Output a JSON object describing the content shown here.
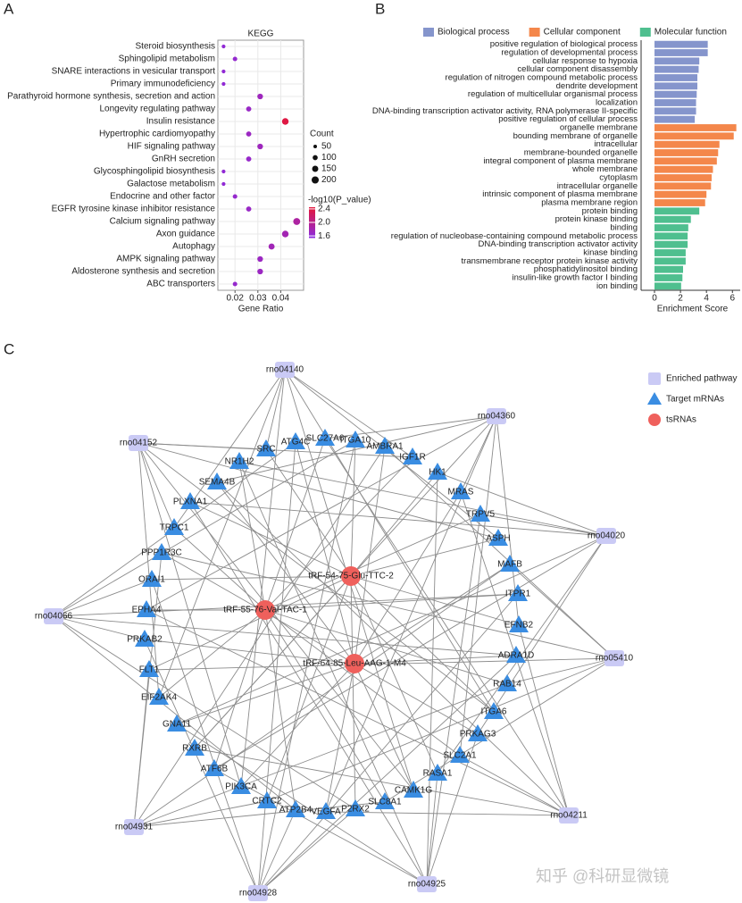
{
  "chart_data": [
    {
      "panel": "A",
      "type": "scatter",
      "title": "KEGG",
      "xlabel": "Gene Ratio",
      "categories": [
        "Steroid biosynthesis",
        "Sphingolipid metabolism",
        "SNARE interactions in vesicular transport",
        "Primary immunodeficiency",
        "Parathyroid hormone synthesis, secretion and action",
        "Longevity regulating pathway",
        "Insulin resistance",
        "Hypertrophic cardiomyopathy",
        "HIF signaling pathway",
        "GnRH secretion",
        "Glycosphingolipid biosynthesis",
        "Galactose metabolism",
        "Endocrine and other factor",
        "EGFR tyrosine kinase inhibitor resistance",
        "Calcium signaling pathway",
        "Axon guidance",
        "Autophagy",
        "AMPK signaling pathway",
        "Aldosterone synthesis and secretion",
        "ABC transporters"
      ],
      "label_colors": [
        "#222222",
        "#222222",
        "#222222",
        "#222222",
        "#d7191c",
        "#d7191c",
        "#d7191c",
        "#d7191c",
        "#d7191c",
        "#222222",
        "#222222",
        "#222222",
        "#222222",
        "#222222",
        "#d7191c",
        "#d7191c",
        "#d7191c",
        "#d7191c",
        "#d7191c",
        "#222222"
      ],
      "values": [
        0.015,
        0.02,
        0.015,
        0.015,
        0.031,
        0.026,
        0.042,
        0.026,
        0.031,
        0.026,
        0.015,
        0.015,
        0.02,
        0.026,
        0.047,
        0.042,
        0.036,
        0.031,
        0.031,
        0.02
      ],
      "size": [
        55,
        80,
        55,
        55,
        125,
        105,
        170,
        105,
        125,
        105,
        55,
        55,
        80,
        105,
        190,
        170,
        145,
        125,
        125,
        80
      ],
      "color_values": [
        1.62,
        1.65,
        1.62,
        1.62,
        1.75,
        1.7,
        2.4,
        1.72,
        1.75,
        1.68,
        1.62,
        1.62,
        1.66,
        1.7,
        1.9,
        1.8,
        1.78,
        1.72,
        1.72,
        1.66
      ],
      "xlim": [
        0.0125,
        0.05
      ],
      "xticks": [
        0.02,
        0.03,
        0.04
      ],
      "grid": true,
      "size_title": "Count",
      "size_ticks": [
        50,
        100,
        150,
        200
      ],
      "color_title": "-log10(P_value)",
      "clim": [
        1.55,
        2.45
      ],
      "cticks": [
        2.4,
        {
          "value": 2,
          "label": "2.0"
        },
        1.6
      ],
      "colormap": [
        "#8a2be2",
        "#e4173a"
      ]
    },
    {
      "panel": "B",
      "type": "bar",
      "orientation": "horizontal",
      "xlabel": "Enrichment Score",
      "xlim": [
        0,
        6.6
      ],
      "xticks": [
        0,
        2,
        4,
        6
      ],
      "series": [
        {
          "name": "Biological process",
          "color": "#8595cc",
          "categories": [
            "positive regulation of biological process",
            "regulation of developmental process",
            "cellular response to hypoxia",
            "cellular component disassembly",
            "regulation of nitrogen compound metabolic process",
            "dendrite development",
            "regulation of multicellular organismal process",
            "localization",
            "DNA-binding transcription activator activity, RNA polymerase II-specific",
            "positive regulation of cellular process"
          ],
          "values": [
            4.1,
            4.1,
            3.45,
            3.4,
            3.3,
            3.3,
            3.25,
            3.2,
            3.2,
            3.1
          ]
        },
        {
          "name": "Cellular component",
          "color": "#f4874b",
          "categories": [
            "organelle membrane",
            "bounding membrane of organelle",
            "intracellular",
            "membrane-bounded organelle",
            "integral component of plasma membrane",
            "whole membrane",
            "cytoplasm",
            "intracellular organelle",
            "intrinsic component of plasma membrane",
            "plasma membrane region"
          ],
          "values": [
            6.3,
            6.1,
            5.0,
            4.9,
            4.8,
            4.5,
            4.4,
            4.35,
            4.0,
            3.9
          ]
        },
        {
          "name": "Molecular function",
          "color": "#4fbf8f",
          "categories": [
            "protein binding",
            "protein kinase binding",
            "binding",
            "regulation of nucleobase-containing compound metabolic process",
            "DNA-binding transcription activator activity",
            "kinase binding",
            "transmembrane receptor protein kinase activity",
            "phosphatidylinositol binding",
            "insulin-like growth factor I binding",
            "ion binding"
          ],
          "values": [
            3.45,
            2.8,
            2.6,
            2.55,
            2.55,
            2.4,
            2.4,
            2.2,
            2.15,
            2.05
          ]
        }
      ]
    }
  ],
  "network": {
    "panel": "C",
    "legend": [
      "Enriched pathway",
      "Target mRNAs",
      "tsRNAs"
    ],
    "colors": {
      "pathway": "#cacaf5",
      "mrna": "#3a8de2",
      "tsrna": "#ef605c",
      "edge": "#8c8c8c"
    },
    "pathways": [
      "rno04140",
      "rno04360",
      "rno04152",
      "rno04020",
      "rno04066",
      "rno05410",
      "rno04211",
      "rno04931",
      "rno04928",
      "rno04925"
    ],
    "tsrnas": [
      "tRF-54-75-Glu-TTC-2",
      "tRF-55-76-Val-TAC-1",
      "tRF-64-85-Leu-AAG-1-M4"
    ],
    "mrnas": [
      {
        "label": "SRC",
        "tsrna": 0,
        "pathways": [
          0,
          2
        ]
      },
      {
        "label": "NR1H2",
        "tsrna": 1,
        "pathways": [
          3,
          9
        ]
      },
      {
        "label": "SEMA4B",
        "tsrna": 2,
        "pathways": [
          6,
          1
        ]
      },
      {
        "label": "PLXNA1",
        "tsrna": 0,
        "pathways": [
          9,
          3
        ]
      },
      {
        "label": "TRPC1",
        "tsrna": 1,
        "pathways": [
          2,
          0
        ]
      },
      {
        "label": "PPP1R3C",
        "tsrna": 2,
        "pathways": [
          5,
          7
        ]
      },
      {
        "label": "ORAI1",
        "tsrna": 0,
        "pathways": [
          8,
          4
        ]
      },
      {
        "label": "EPHA4",
        "tsrna": 1,
        "pathways": [
          1,
          6
        ]
      },
      {
        "label": "PRKAB2",
        "tsrna": 2,
        "pathways": [
          4,
          8
        ]
      },
      {
        "label": "FLT1",
        "tsrna": 0,
        "pathways": [
          7,
          5
        ]
      },
      {
        "label": "EIF2AK4",
        "tsrna": 1,
        "pathways": [
          0,
          2
        ]
      },
      {
        "label": "GNA11",
        "tsrna": 2,
        "pathways": [
          3,
          9
        ]
      },
      {
        "label": "RXRB",
        "tsrna": 0,
        "pathways": [
          6,
          1
        ]
      },
      {
        "label": "ATF6B",
        "tsrna": 1,
        "pathways": [
          9,
          3
        ]
      },
      {
        "label": "PIK3CA",
        "tsrna": 2,
        "pathways": [
          2,
          0
        ]
      },
      {
        "label": "CRTC2",
        "tsrna": 0,
        "pathways": [
          5,
          7
        ]
      },
      {
        "label": "ATP2B4",
        "tsrna": 1,
        "pathways": [
          8,
          4
        ]
      },
      {
        "label": "VEGFA",
        "tsrna": 2,
        "pathways": [
          1,
          6
        ]
      },
      {
        "label": "P2RX2",
        "tsrna": 0,
        "pathways": [
          4,
          8
        ]
      },
      {
        "label": "SLC8A1",
        "tsrna": 1,
        "pathways": [
          7,
          5
        ]
      },
      {
        "label": "CAMK1G",
        "tsrna": 2,
        "pathways": [
          0,
          2
        ]
      },
      {
        "label": "RASA1",
        "tsrna": 0,
        "pathways": [
          3,
          9
        ]
      },
      {
        "label": "SLC2A1",
        "tsrna": 1,
        "pathways": [
          6,
          1
        ]
      },
      {
        "label": "PRKAG3",
        "tsrna": 2,
        "pathways": [
          9,
          3
        ]
      },
      {
        "label": "ITGA6",
        "tsrna": 0,
        "pathways": [
          2,
          0
        ]
      },
      {
        "label": "RAB14",
        "tsrna": 1,
        "pathways": [
          5,
          7
        ]
      },
      {
        "label": "ADRA1D",
        "tsrna": 2,
        "pathways": [
          8,
          4
        ]
      },
      {
        "label": "EFNB2",
        "tsrna": 0,
        "pathways": [
          1,
          6
        ]
      },
      {
        "label": "ITPR1",
        "tsrna": 1,
        "pathways": [
          4,
          8
        ]
      },
      {
        "label": "MAFB",
        "tsrna": 2,
        "pathways": [
          7,
          5
        ]
      },
      {
        "label": "ASPH",
        "tsrna": 0,
        "pathways": [
          0,
          2
        ]
      },
      {
        "label": "TRPV5",
        "tsrna": 1,
        "pathways": [
          3,
          9
        ]
      },
      {
        "label": "MRAS",
        "tsrna": 2,
        "pathways": [
          6,
          1
        ]
      },
      {
        "label": "HK1",
        "tsrna": 0,
        "pathways": [
          9,
          3
        ]
      },
      {
        "label": "IGF1R",
        "tsrna": 1,
        "pathways": [
          2,
          0
        ]
      },
      {
        "label": "AMBRA1",
        "tsrna": 2,
        "pathways": [
          5,
          7
        ]
      },
      {
        "label": "ITGA10",
        "tsrna": 0,
        "pathways": [
          8,
          4
        ]
      },
      {
        "label": "SLC27A6",
        "tsrna": 1,
        "pathways": [
          1,
          6
        ]
      },
      {
        "label": "ATG4C",
        "tsrna": 2,
        "pathways": [
          4,
          8
        ]
      }
    ]
  },
  "watermark": "知乎 @科研显微镜"
}
